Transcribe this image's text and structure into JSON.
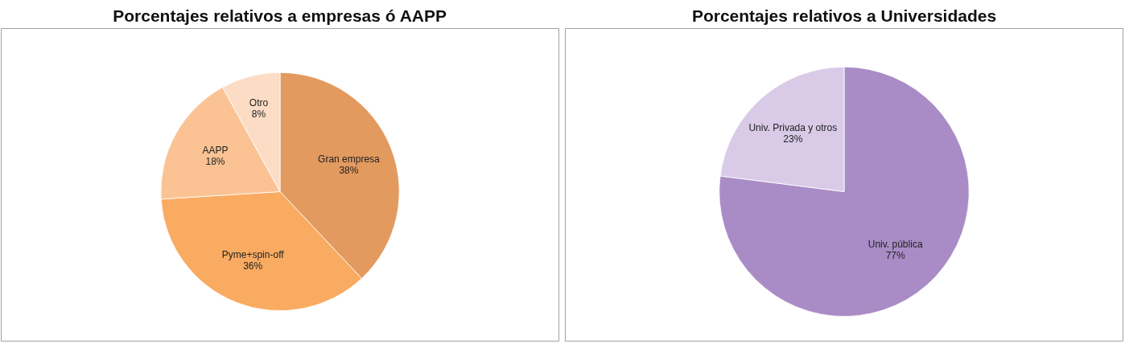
{
  "chart_data": [
    {
      "type": "pie",
      "title": "Porcentajes relativos a empresas ó AAPP",
      "categories": [
        "Gran empresa",
        "Pyme+spin-off",
        "AAPP",
        "Otro"
      ],
      "values": [
        38,
        36,
        18,
        8
      ],
      "value_labels": [
        "38%",
        "36%",
        "18%",
        "8%"
      ],
      "colors": [
        "#e39a5e",
        "#f9ab62",
        "#fbc393",
        "#fcdcc4"
      ]
    },
    {
      "type": "pie",
      "title": "Porcentajes relativos a Universidades",
      "categories": [
        "Univ. pública",
        "Univ. Privada y otros"
      ],
      "values": [
        77,
        23
      ],
      "value_labels": [
        "77%",
        "23%"
      ],
      "colors": [
        "#a98cc6",
        "#d9cbe8"
      ]
    }
  ]
}
